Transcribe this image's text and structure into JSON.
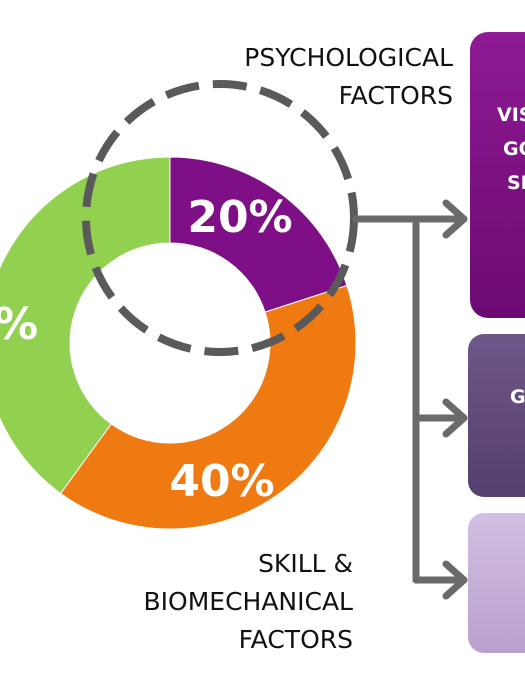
{
  "colors": {
    "green": "#92d050",
    "purple": "#7f0f86",
    "orange": "#f07a12",
    "highlight_ring": "#5a5a5a",
    "connector": "#6a6a6a",
    "box_top": "#7b1080",
    "box_middle": "#60497a",
    "box_bottom": "#c6afd8"
  },
  "chart_data": {
    "type": "pie",
    "donut": true,
    "slices": [
      {
        "label": "PSYCHOLOGICAL FACTORS",
        "value": 20,
        "display": "20%",
        "color": "#7f0f86"
      },
      {
        "label": "SKILL & BIOMECHANICAL FACTORS",
        "value": 40,
        "display": "40%",
        "color": "#f07a12"
      },
      {
        "label": "",
        "value": 40,
        "display": "%",
        "color": "#92d050"
      }
    ]
  },
  "labels": {
    "psychological": [
      "PSYCHOLOGICAL",
      "FACTORS"
    ],
    "skill": [
      "SKILL &",
      "BIOMECHANICAL",
      "FACTORS"
    ]
  },
  "boxes": [
    {
      "lines": [
        "VIS",
        "GO",
        "SE"
      ],
      "color": "#7b1080"
    },
    {
      "lines": [
        "G"
      ],
      "color": "#60497a"
    },
    {
      "lines": [],
      "color": "#c6afd8"
    }
  ]
}
